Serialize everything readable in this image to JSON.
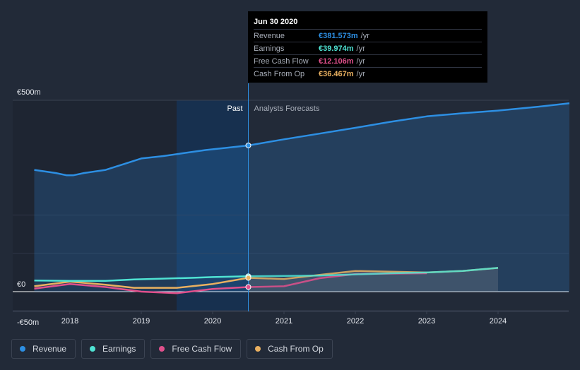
{
  "chart_data": {
    "type": "line",
    "y_ticks": [
      {
        "value": 500,
        "label": "€500m"
      },
      {
        "value": 0,
        "label": "€0"
      },
      {
        "value": -50,
        "label": "-€50m"
      }
    ],
    "x_ticks": [
      {
        "value": 2018,
        "label": "2018"
      },
      {
        "value": 2019,
        "label": "2019"
      },
      {
        "value": 2020,
        "label": "2020"
      },
      {
        "value": 2021,
        "label": "2021"
      },
      {
        "value": 2022,
        "label": "2022"
      },
      {
        "value": 2023,
        "label": "2023"
      },
      {
        "value": 2024,
        "label": "2024"
      }
    ],
    "ylim": [
      -50,
      500
    ],
    "xlim": [
      2017.3,
      2025.0
    ],
    "divider_x": 2020.5,
    "past_label": "Past",
    "forecast_label": "Analysts Forecasts",
    "legend_position": "bottom-left",
    "series": [
      {
        "name": "Revenue",
        "color": "#2d8fe3",
        "x": [
          2017.5,
          2017.8,
          2017.95,
          2018.05,
          2018.2,
          2018.5,
          2018.8,
          2019.0,
          2019.3,
          2019.6,
          2019.9,
          2020.2,
          2020.5
        ],
        "y": [
          318,
          310,
          304,
          304,
          310,
          318,
          336,
          348,
          354,
          362,
          370,
          376,
          382
        ],
        "forecast_x": [
          2020.5,
          2021.0,
          2021.5,
          2022.0,
          2022.5,
          2023.0,
          2023.5,
          2024.0,
          2024.5,
          2025.0
        ],
        "forecast_y": [
          382,
          398,
          413,
          428,
          444,
          458,
          466,
          473,
          482,
          492
        ]
      },
      {
        "name": "Earnings",
        "color": "#4fe3d3",
        "x": [
          2017.5,
          2018.0,
          2018.5,
          2018.9,
          2019.3,
          2019.7,
          2020.0,
          2020.5
        ],
        "y": [
          29,
          28,
          28,
          32,
          34,
          36,
          38,
          40
        ],
        "forecast_x": [
          2020.5,
          2021.0,
          2021.5,
          2022.0,
          2022.5,
          2023.0,
          2023.5,
          2024.0
        ],
        "forecast_y": [
          40,
          41,
          42,
          45,
          48,
          50,
          54,
          62
        ]
      },
      {
        "name": "Free Cash Flow",
        "color": "#e0508c",
        "x": [
          2017.5,
          2018.0,
          2018.5,
          2019.0,
          2019.5,
          2020.0,
          2020.5
        ],
        "y": [
          8,
          20,
          12,
          0,
          -4,
          7,
          12
        ],
        "forecast_x": [
          2020.5,
          2021.0,
          2021.5,
          2022.0,
          2022.5,
          2023.0
        ],
        "forecast_y": [
          12,
          14,
          35,
          46,
          47,
          48
        ]
      },
      {
        "name": "Cash From Op",
        "color": "#e9b060",
        "x": [
          2017.5,
          2018.0,
          2018.5,
          2018.9,
          2019.5,
          2020.0,
          2020.5
        ],
        "y": [
          14,
          26,
          18,
          10,
          10,
          20,
          36
        ],
        "forecast_x": [
          2020.5,
          2021.0,
          2021.5,
          2022.0,
          2022.5,
          2023.0,
          2023.5,
          2024.0
        ],
        "forecast_y": [
          36,
          33,
          44,
          54,
          52,
          50,
          54,
          62
        ]
      }
    ]
  },
  "tooltip": {
    "date": "Jun 30 2020",
    "rows": [
      {
        "label": "Revenue",
        "value": "€381.573m",
        "unit": "/yr",
        "color": "#2d8fe3"
      },
      {
        "label": "Earnings",
        "value": "€39.974m",
        "unit": "/yr",
        "color": "#4fe3d3"
      },
      {
        "label": "Free Cash Flow",
        "value": "€12.106m",
        "unit": "/yr",
        "color": "#e0508c"
      },
      {
        "label": "Cash From Op",
        "value": "€36.467m",
        "unit": "/yr",
        "color": "#e9b060"
      }
    ]
  },
  "legend": [
    {
      "label": "Revenue",
      "color": "#2d8fe3"
    },
    {
      "label": "Earnings",
      "color": "#4fe3d3"
    },
    {
      "label": "Free Cash Flow",
      "color": "#e0508c"
    },
    {
      "label": "Cash From Op",
      "color": "#e9b060"
    }
  ]
}
